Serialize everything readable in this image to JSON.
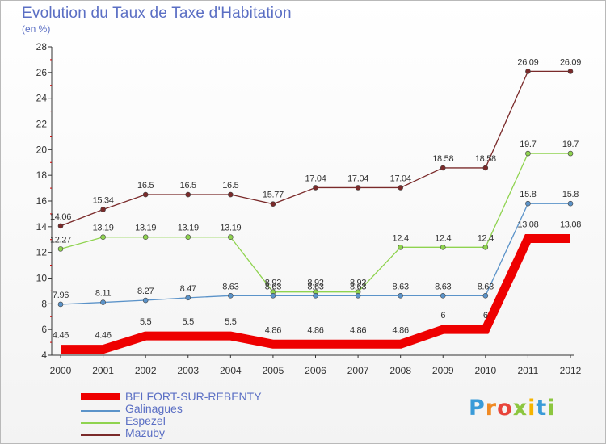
{
  "title": "Evolution du Taux de Taxe d'Habitation",
  "unit_label": "(en %)",
  "brand": "Proxiti",
  "chart_data": {
    "type": "line",
    "title": "Evolution du Taux de Taxe d'Habitation",
    "ylabel": "(en %)",
    "xlabel": "",
    "x": [
      "2000",
      "2001",
      "2002",
      "2003",
      "2004",
      "2005",
      "2006",
      "2007",
      "2008",
      "2009",
      "2010",
      "2011",
      "2012"
    ],
    "ylim": [
      4,
      28
    ],
    "yticks": [
      "4",
      "6",
      "8",
      "10",
      "12",
      "14",
      "16",
      "18",
      "20",
      "22",
      "24",
      "26",
      "28"
    ],
    "grid": false,
    "legend_position": "bottom-left",
    "series": [
      {
        "name": "BELFORT-SUR-REBENTY",
        "color": "#ee0000",
        "values": [
          4.46,
          4.46,
          5.5,
          5.5,
          5.5,
          4.86,
          4.86,
          4.86,
          4.86,
          6,
          6,
          13.08,
          13.08
        ],
        "labels": [
          "4.46",
          "4.46",
          "5.5",
          "5.5",
          "5.5",
          "4.86",
          "4.86",
          "4.86",
          "4.86",
          "6",
          "6",
          "13.08",
          "13.08"
        ]
      },
      {
        "name": "Galinagues",
        "color": "#5b93c9",
        "values": [
          7.96,
          8.11,
          8.27,
          8.47,
          8.63,
          8.63,
          8.63,
          8.63,
          8.63,
          8.63,
          8.63,
          15.8,
          15.8
        ],
        "labels": [
          "7.96",
          "8.11",
          "8.27",
          "8.47",
          "8.63",
          "8.63",
          "8.63",
          "8.63",
          "8.63",
          "8.63",
          "8.63",
          "15.8",
          "15.8"
        ]
      },
      {
        "name": "Espezel",
        "color": "#8fd34f",
        "values": [
          12.27,
          13.19,
          13.19,
          13.19,
          13.19,
          8.92,
          8.92,
          8.92,
          12.4,
          12.4,
          12.4,
          19.7,
          19.7
        ],
        "labels": [
          "12.27",
          "13.19",
          "13.19",
          "13.19",
          "13.19",
          "8.92",
          "8.92",
          "8.92",
          "12.4",
          "12.4",
          "12.4",
          "19.7",
          "19.7"
        ]
      },
      {
        "name": "Mazuby",
        "color": "#7a2a2a",
        "values": [
          14.06,
          15.34,
          16.5,
          16.5,
          16.5,
          15.77,
          17.04,
          17.04,
          17.04,
          18.58,
          18.58,
          26.09,
          26.09
        ],
        "labels": [
          "14.06",
          "15.34",
          "16.5",
          "16.5",
          "16.5",
          "15.77",
          "17.04",
          "17.04",
          "17.04",
          "18.58",
          "18.58",
          "26.09",
          "26.09"
        ]
      }
    ]
  }
}
